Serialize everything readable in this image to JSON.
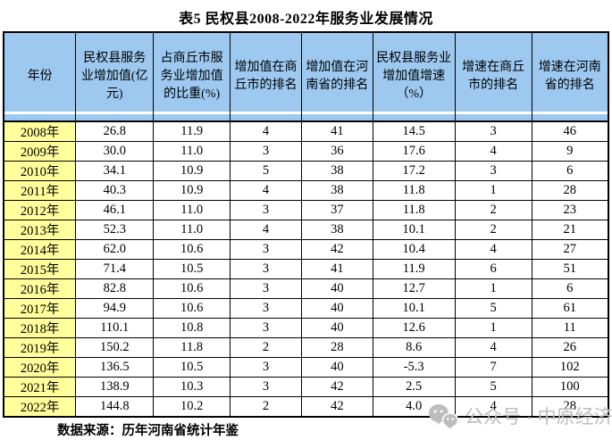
{
  "title": "表5 民权县2008-2022年服务业发展情况",
  "chart_data": {
    "type": "table",
    "title": "表5 民权县2008-2022年服务业发展情况",
    "columns": [
      "年份",
      "民权县服务业增加值(亿元)",
      "占商丘市服务业增加值的比重(%)",
      "增加值在商丘市的排名",
      "增加值在河南省的排名",
      "民权县服务业增加值增速（%）",
      "增速在商丘市的排名",
      "增速在河南省的排名"
    ],
    "rows": [
      [
        "2008年",
        "26.8",
        "11.9",
        "4",
        "41",
        "14.5",
        "3",
        "46"
      ],
      [
        "2009年",
        "30.0",
        "11.0",
        "3",
        "36",
        "17.6",
        "4",
        "9"
      ],
      [
        "2010年",
        "34.1",
        "10.9",
        "5",
        "38",
        "17.2",
        "3",
        "6"
      ],
      [
        "2011年",
        "40.3",
        "10.9",
        "4",
        "38",
        "11.8",
        "1",
        "28"
      ],
      [
        "2012年",
        "46.1",
        "11.0",
        "3",
        "37",
        "11.8",
        "2",
        "23"
      ],
      [
        "2013年",
        "52.3",
        "11.0",
        "4",
        "38",
        "10.1",
        "2",
        "21"
      ],
      [
        "2014年",
        "62.0",
        "10.6",
        "3",
        "42",
        "10.4",
        "4",
        "27"
      ],
      [
        "2015年",
        "71.4",
        "10.5",
        "3",
        "41",
        "11.9",
        "6",
        "51"
      ],
      [
        "2016年",
        "82.8",
        "10.6",
        "3",
        "40",
        "12.7",
        "1",
        "6"
      ],
      [
        "2017年",
        "94.9",
        "10.6",
        "3",
        "40",
        "10.1",
        "5",
        "61"
      ],
      [
        "2018年",
        "110.1",
        "10.8",
        "3",
        "40",
        "12.6",
        "1",
        "11"
      ],
      [
        "2019年",
        "150.2",
        "11.8",
        "2",
        "28",
        "8.6",
        "4",
        "26"
      ],
      [
        "2020年",
        "136.5",
        "10.5",
        "3",
        "40",
        "-5.3",
        "7",
        "102"
      ],
      [
        "2021年",
        "138.9",
        "10.3",
        "3",
        "42",
        "2.5",
        "5",
        "100"
      ],
      [
        "2022年",
        "144.8",
        "10.2",
        "2",
        "42",
        "4.0",
        "4",
        "28"
      ]
    ]
  },
  "footer": {
    "source": "数据来源：历年河南省统计年鉴"
  },
  "watermark": {
    "icon": "wechat-icon",
    "text": "公众号 · 中原经济"
  },
  "colors": {
    "header_bg": "#9dc9f1",
    "year_bg": "#ffff9c",
    "border": "#000000",
    "watermark": "#bdbdbd"
  }
}
